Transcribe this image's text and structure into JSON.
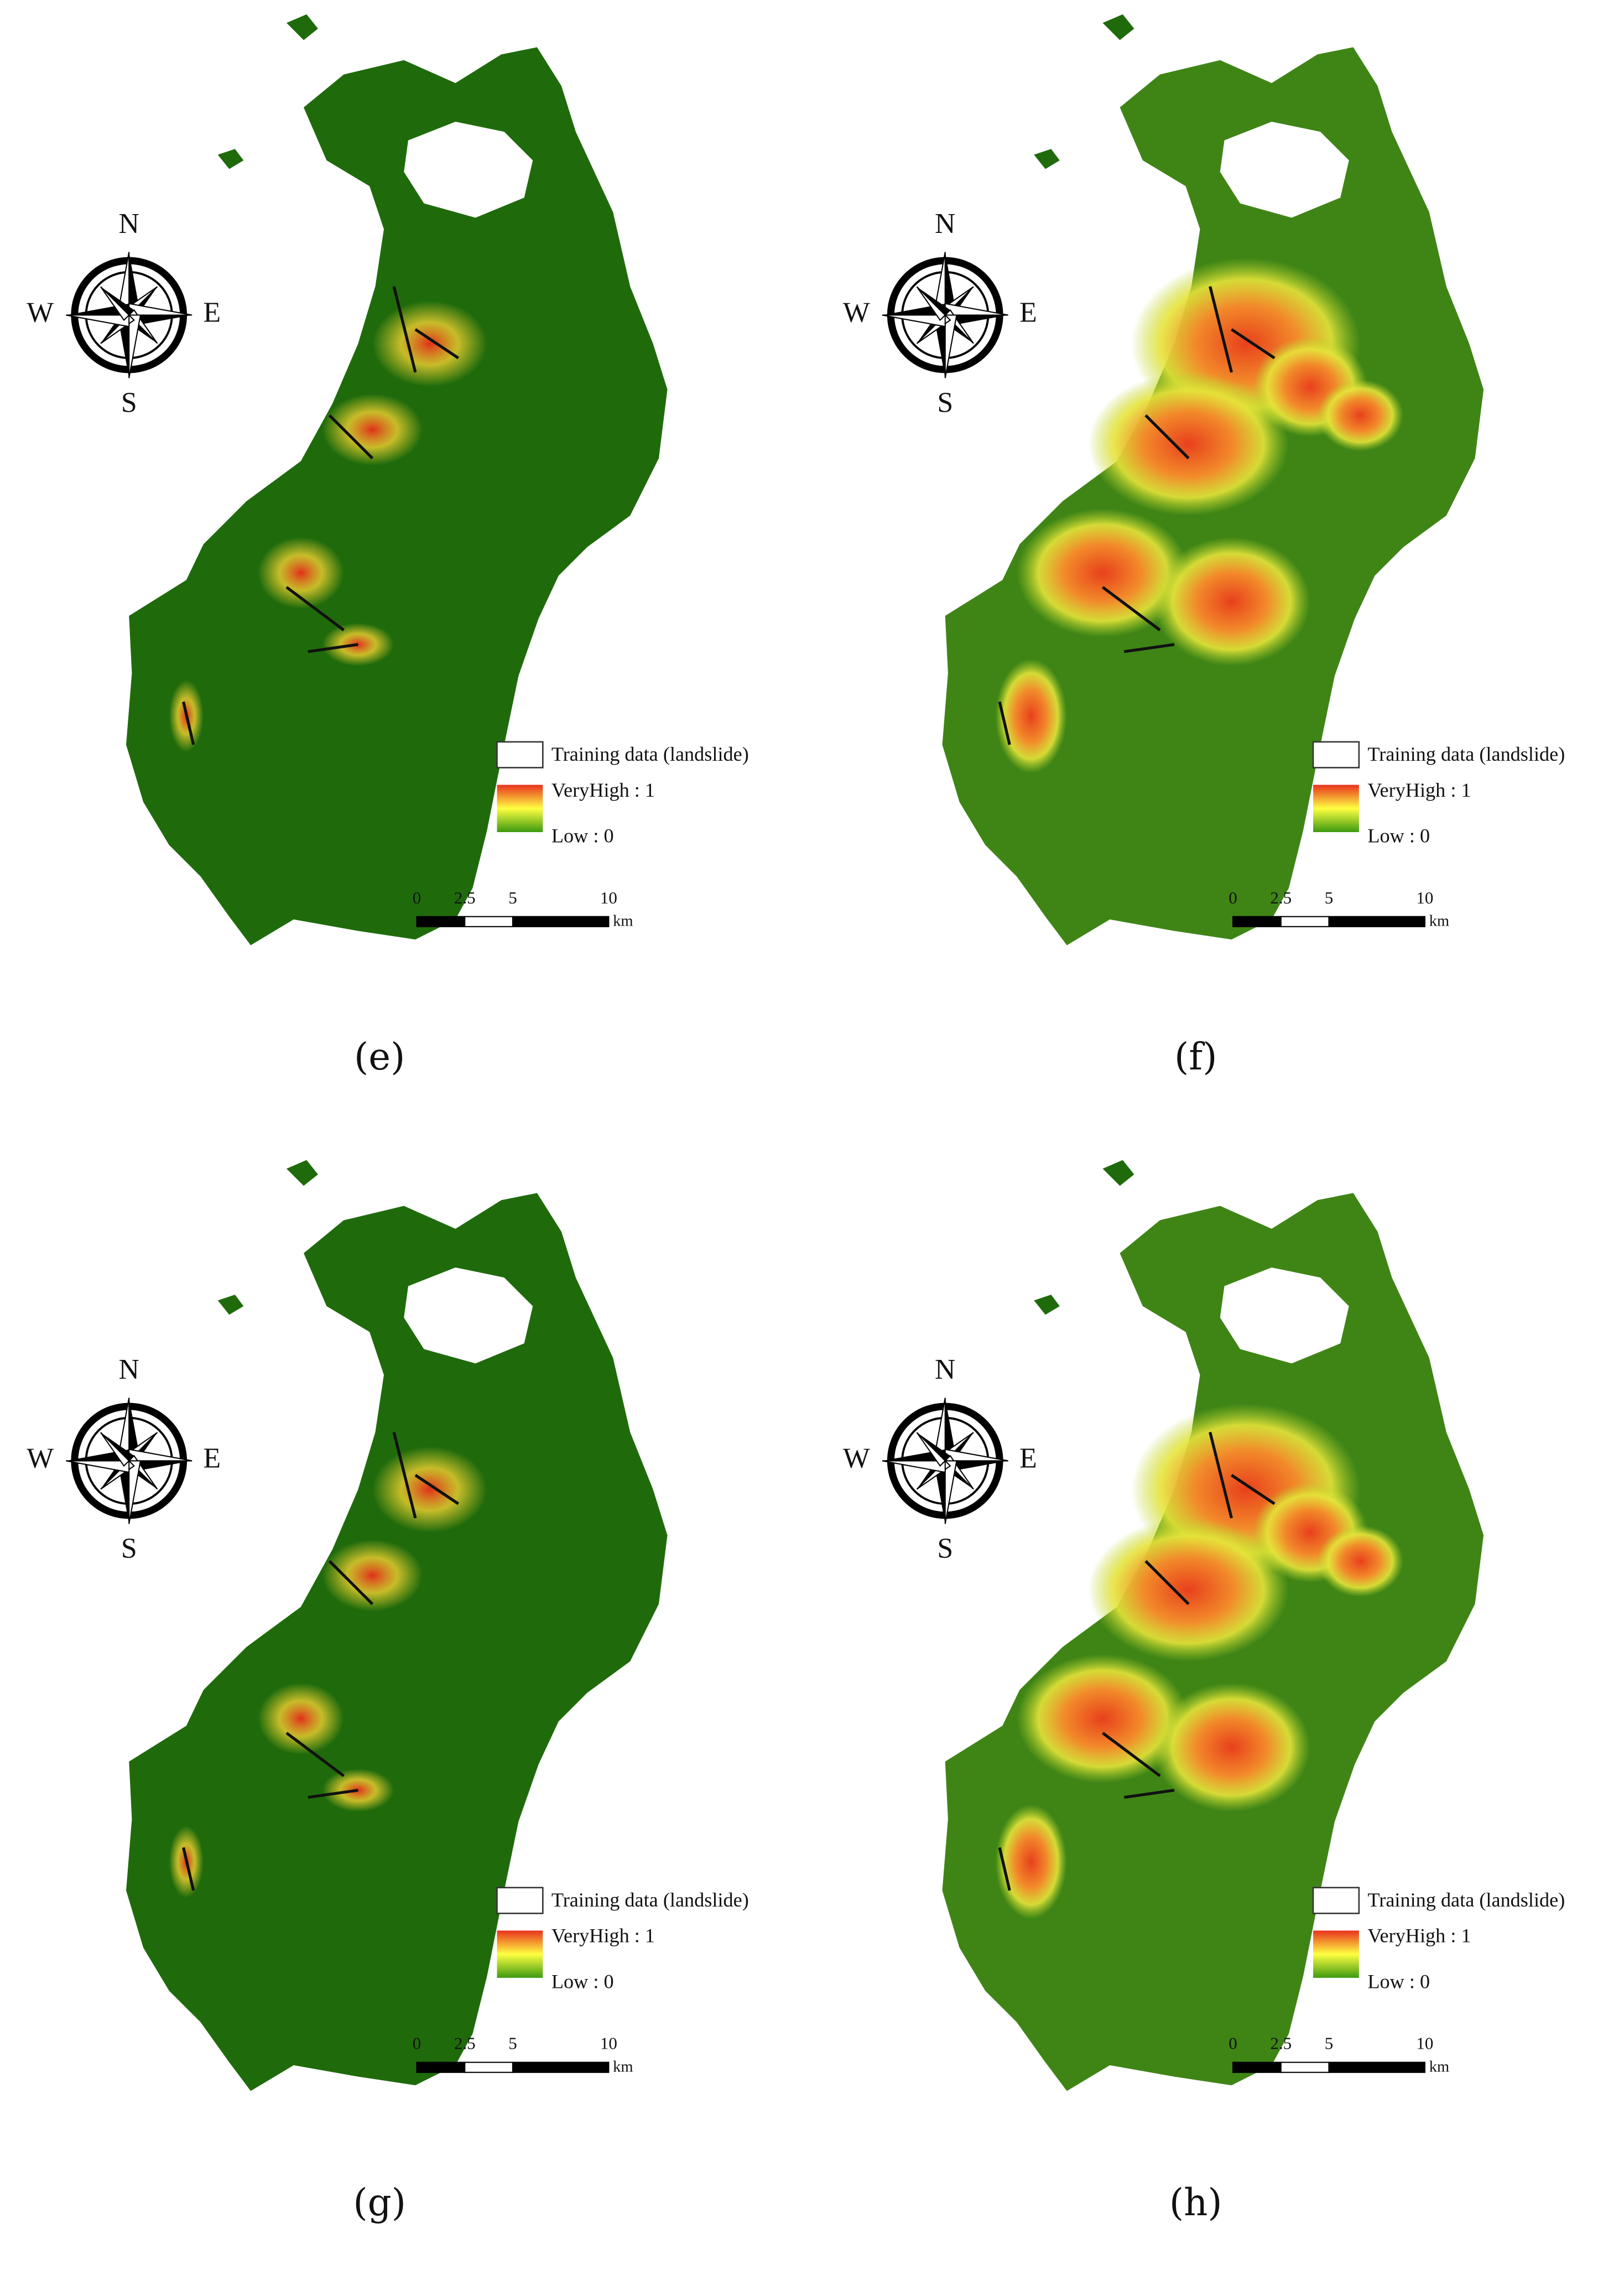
{
  "panels": [
    {
      "label": "(e)",
      "compass": {
        "n": "N",
        "s": "S",
        "w": "W",
        "e": "E"
      },
      "legend": {
        "training": "Training data (landslide)",
        "high": "VeryHigh : 1",
        "low": "Low : 0"
      },
      "scale_bar": {
        "ticks": [
          0,
          2.5,
          5,
          10
        ],
        "unit": "km"
      }
    },
    {
      "label": "(f)",
      "compass": {
        "n": "N",
        "s": "S",
        "w": "W",
        "e": "E"
      },
      "legend": {
        "training": "Training data (landslide)",
        "high": "VeryHigh : 1",
        "low": "Low : 0"
      },
      "scale_bar": {
        "ticks": [
          0,
          2.5,
          5,
          10
        ],
        "unit": "km"
      }
    },
    {
      "label": "(g)",
      "compass": {
        "n": "N",
        "s": "S",
        "w": "W",
        "e": "E"
      },
      "legend": {
        "training": "Training data (landslide)",
        "high": "VeryHigh : 1",
        "low": "Low : 0"
      },
      "scale_bar": {
        "ticks": [
          0,
          2.5,
          5,
          10
        ],
        "unit": "km"
      }
    },
    {
      "label": "(h)",
      "compass": {
        "n": "N",
        "s": "S",
        "w": "W",
        "e": "E"
      },
      "legend": {
        "training": "Training data (landslide)",
        "high": "VeryHigh : 1",
        "low": "Low : 0"
      },
      "scale_bar": {
        "ticks": [
          0,
          2.5,
          5,
          10
        ],
        "unit": "km"
      }
    }
  ]
}
